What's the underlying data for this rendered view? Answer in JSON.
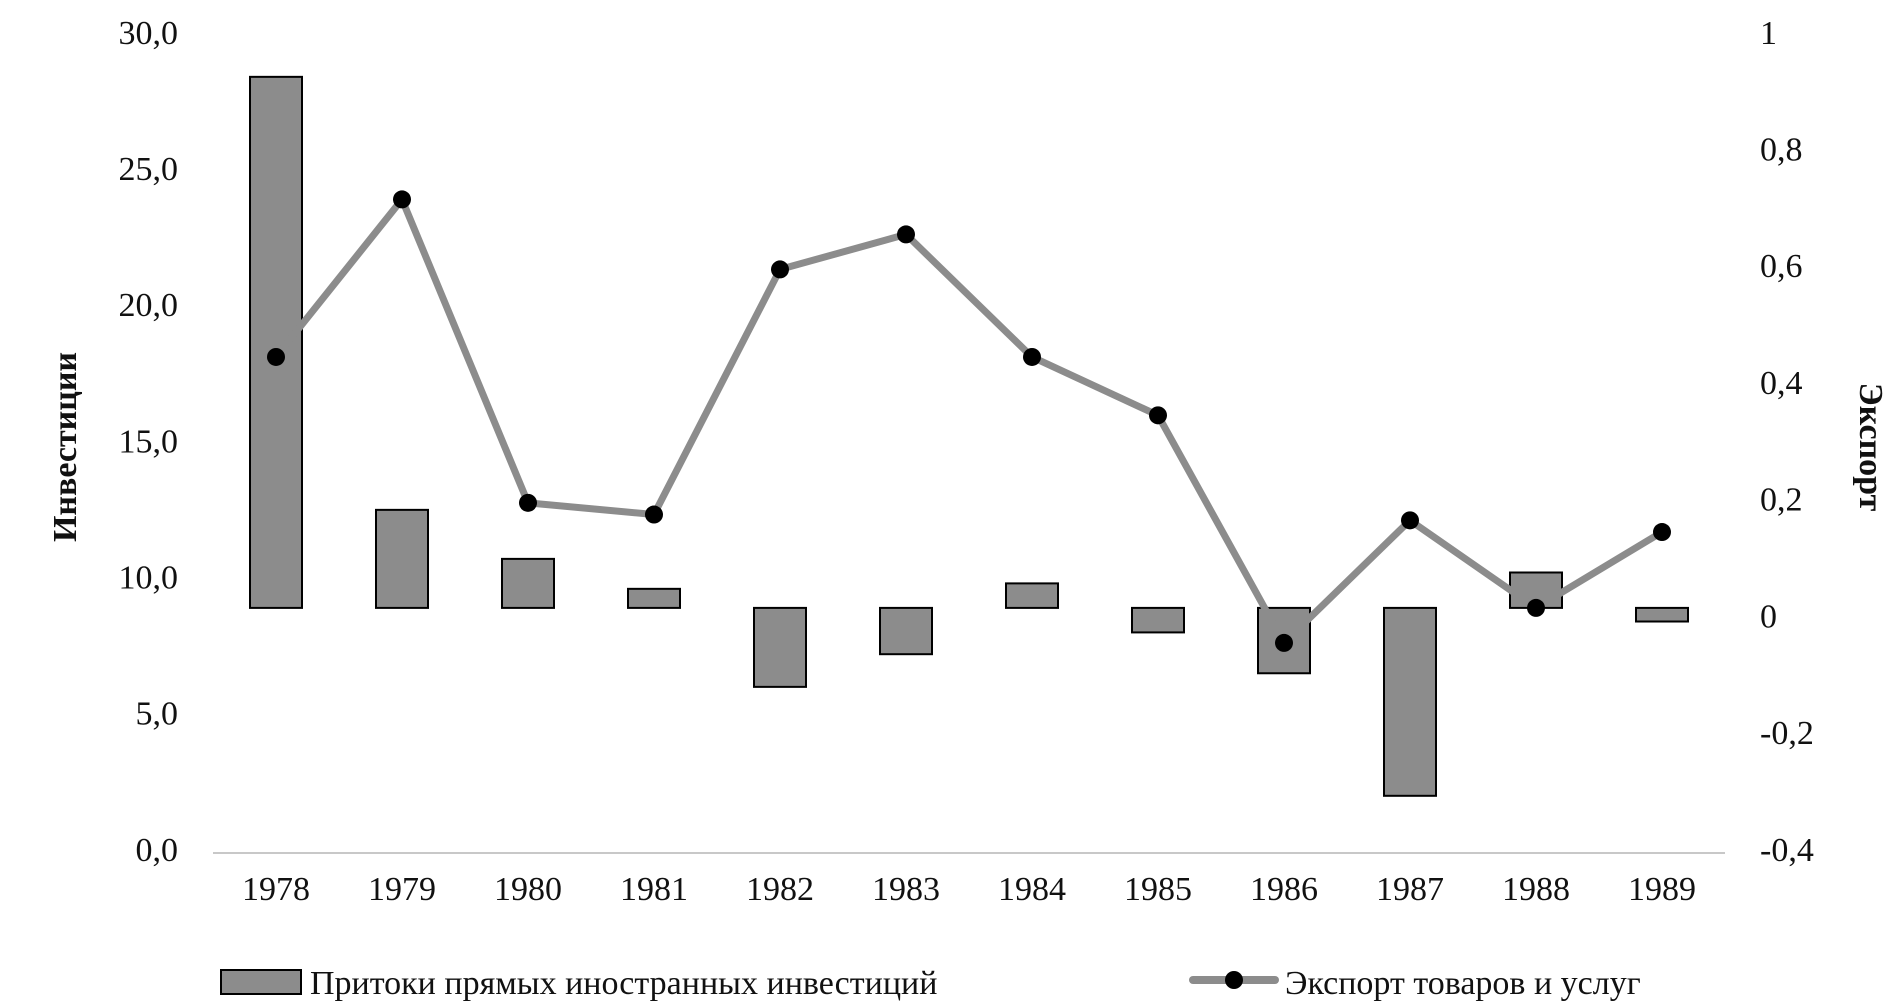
{
  "chart_data": {
    "type": "bar",
    "title": "",
    "categories": [
      "1978",
      "1979",
      "1980",
      "1981",
      "1982",
      "1983",
      "1984",
      "1985",
      "1986",
      "1987",
      "1988",
      "1989"
    ],
    "y_left": {
      "label": "Инвестиции",
      "range": [
        0,
        30
      ],
      "ticks": [
        "0,0",
        "5,0",
        "10,0",
        "15,0",
        "20,0",
        "25,0",
        "30,0"
      ],
      "tick_values": [
        0,
        5,
        10,
        15,
        20,
        25,
        30
      ],
      "baseline": 9.0
    },
    "y_right": {
      "label": "Экспорт",
      "range": [
        -0.4,
        1
      ],
      "ticks": [
        "-0,4",
        "-0,2",
        "0",
        "0,2",
        "0,4",
        "0,6",
        "0,8",
        "1"
      ],
      "tick_values": [
        -0.4,
        -0.2,
        0,
        0.2,
        0.4,
        0.6,
        0.8,
        1
      ]
    },
    "series": [
      {
        "name": "Притоки прямых иностранных инвестиций",
        "kind": "bar",
        "axis": "left",
        "color": "#8c8c8c",
        "values": [
          28.5,
          12.6,
          10.8,
          9.7,
          6.1,
          7.3,
          9.9,
          8.1,
          6.6,
          2.1,
          10.3,
          8.5
        ]
      },
      {
        "name": "Экспорт товаров и услуг",
        "kind": "line",
        "axis": "right",
        "color": "#8c8c8c",
        "marker_color": "#000000",
        "values": [
          0.45,
          0.72,
          0.2,
          0.18,
          0.6,
          0.66,
          0.45,
          0.35,
          -0.04,
          0.17,
          0.02,
          0.15
        ]
      }
    ],
    "grid": false,
    "legend_position": "bottom"
  }
}
